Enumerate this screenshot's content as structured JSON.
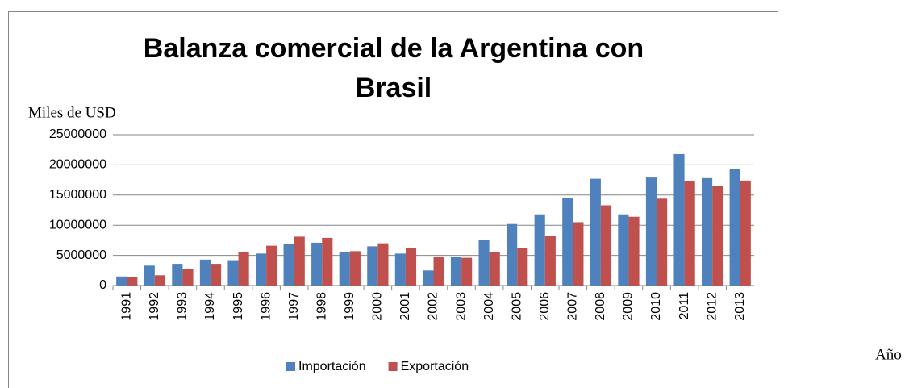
{
  "chart_data": {
    "type": "bar",
    "title": "Balanza comercial de la Argentina con Brasil",
    "y_axis_label": "Miles de USD",
    "x_axis_label": "Año",
    "categories": [
      "1991",
      "1992",
      "1993",
      "1994",
      "1995",
      "1996",
      "1997",
      "1998",
      "1999",
      "2000",
      "2001",
      "2002",
      "2003",
      "2004",
      "2005",
      "2006",
      "2007",
      "2008",
      "2009",
      "2010",
      "2011",
      "2012",
      "2013"
    ],
    "series": [
      {
        "name": "Importación",
        "color": "#4f81bd",
        "values": [
          1500000,
          3300000,
          3600000,
          4300000,
          4200000,
          5300000,
          6900000,
          7100000,
          5600000,
          6500000,
          5300000,
          2500000,
          4700000,
          7600000,
          10200000,
          11800000,
          14500000,
          17700000,
          11800000,
          17900000,
          21800000,
          17800000,
          19300000
        ]
      },
      {
        "name": "Exportación",
        "color": "#c0504d",
        "values": [
          1450000,
          1700000,
          2800000,
          3600000,
          5500000,
          6600000,
          8100000,
          7900000,
          5700000,
          7000000,
          6200000,
          4800000,
          4600000,
          5600000,
          6200000,
          8200000,
          10500000,
          13300000,
          11400000,
          14400000,
          17300000,
          16500000,
          17400000
        ]
      }
    ],
    "ylim": [
      0,
      25000000
    ],
    "yticks": [
      0,
      5000000,
      10000000,
      15000000,
      20000000,
      25000000
    ],
    "grid": true,
    "legend": "bottom"
  }
}
